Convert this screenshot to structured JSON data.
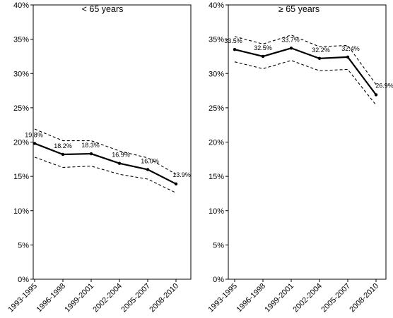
{
  "chart_data": [
    {
      "type": "line",
      "title": "< 65 years",
      "categories": [
        "1993-1995",
        "1996-1998",
        "1999-2001",
        "2002-2004",
        "2005-2007",
        "2008-2010"
      ],
      "yticks": [
        "0%",
        "5%",
        "10%",
        "15%",
        "20%",
        "25%",
        "30%",
        "35%",
        "40%"
      ],
      "ylim": [
        0,
        40
      ],
      "xlabel": "",
      "ylabel": "",
      "grid": false,
      "series": [
        {
          "role": "estimate",
          "values": [
            19.8,
            18.2,
            18.3,
            16.9,
            16.0,
            13.9
          ],
          "labels": [
            "19.8%",
            "18.2%",
            "18.3%",
            "16.9%",
            "16.0%",
            "13.9%"
          ]
        },
        {
          "role": "upper",
          "values": [
            21.9,
            20.2,
            20.2,
            18.7,
            17.7,
            15.3
          ]
        },
        {
          "role": "lower",
          "values": [
            17.8,
            16.3,
            16.5,
            15.3,
            14.6,
            12.6
          ]
        }
      ]
    },
    {
      "type": "line",
      "title": "≥ 65 years",
      "categories": [
        "1993-1995",
        "1996-1998",
        "1999-2001",
        "2002-2004",
        "2005-2007",
        "2008-2010"
      ],
      "yticks": [
        "0%",
        "5%",
        "10%",
        "15%",
        "20%",
        "25%",
        "30%",
        "35%",
        "40%"
      ],
      "ylim": [
        0,
        40
      ],
      "xlabel": "",
      "ylabel": "",
      "grid": false,
      "series": [
        {
          "role": "estimate",
          "values": [
            33.5,
            32.5,
            33.7,
            32.2,
            32.4,
            26.9
          ],
          "labels": [
            "33.5%",
            "32.5%",
            "33.7%",
            "32.2%",
            "32.4%",
            "26.9%"
          ]
        },
        {
          "role": "upper",
          "values": [
            35.4,
            34.3,
            35.6,
            33.9,
            34.1,
            28.4
          ]
        },
        {
          "role": "lower",
          "values": [
            31.7,
            30.7,
            31.9,
            30.4,
            30.6,
            25.4
          ]
        }
      ]
    }
  ]
}
